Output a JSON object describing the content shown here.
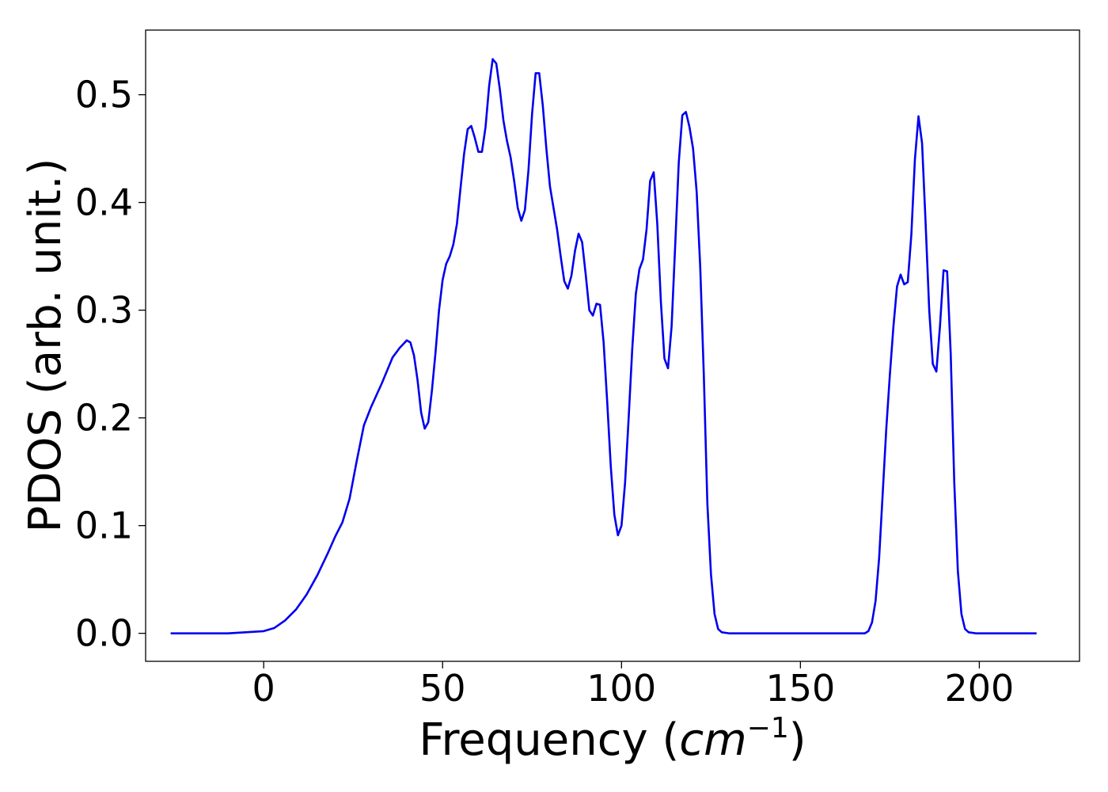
{
  "chart_data": {
    "type": "line",
    "title": "",
    "xlabel": "Frequency (",
    "xlabel_math_base": "cm",
    "xlabel_math_sup": "−1",
    "xlabel_suffix": ")",
    "ylabel": "PDOS (arb. unit.)",
    "xlim": [
      -33,
      228
    ],
    "ylim": [
      -0.026,
      0.56
    ],
    "xticks": [
      0,
      50,
      100,
      150,
      200
    ],
    "xtick_labels": [
      "0",
      "50",
      "100",
      "150",
      "200"
    ],
    "yticks": [
      0.0,
      0.1,
      0.2,
      0.3,
      0.4,
      0.5
    ],
    "ytick_labels": [
      "0.0",
      "0.1",
      "0.2",
      "0.3",
      "0.4",
      "0.5"
    ],
    "grid": false,
    "legend": "none",
    "series": [
      {
        "color": "#0000ee",
        "points": [
          [
            -26,
            0.0
          ],
          [
            -10,
            0.0
          ],
          [
            -5,
            0.001
          ],
          [
            0,
            0.002
          ],
          [
            3,
            0.005
          ],
          [
            6,
            0.012
          ],
          [
            9,
            0.022
          ],
          [
            12,
            0.036
          ],
          [
            15,
            0.054
          ],
          [
            18,
            0.075
          ],
          [
            20,
            0.09
          ],
          [
            22,
            0.103
          ],
          [
            24,
            0.125
          ],
          [
            26,
            0.16
          ],
          [
            28,
            0.193
          ],
          [
            30,
            0.21
          ],
          [
            33,
            0.232
          ],
          [
            36,
            0.256
          ],
          [
            38,
            0.265
          ],
          [
            40,
            0.272
          ],
          [
            41,
            0.27
          ],
          [
            42,
            0.258
          ],
          [
            43,
            0.235
          ],
          [
            44,
            0.205
          ],
          [
            45,
            0.19
          ],
          [
            46,
            0.196
          ],
          [
            47,
            0.225
          ],
          [
            48,
            0.26
          ],
          [
            49,
            0.3
          ],
          [
            50,
            0.328
          ],
          [
            51,
            0.343
          ],
          [
            52,
            0.35
          ],
          [
            53,
            0.361
          ],
          [
            54,
            0.38
          ],
          [
            55,
            0.413
          ],
          [
            56,
            0.445
          ],
          [
            57,
            0.468
          ],
          [
            58,
            0.471
          ],
          [
            59,
            0.46
          ],
          [
            60,
            0.447
          ],
          [
            61,
            0.447
          ],
          [
            62,
            0.47
          ],
          [
            63,
            0.508
          ],
          [
            64,
            0.533
          ],
          [
            65,
            0.529
          ],
          [
            66,
            0.505
          ],
          [
            67,
            0.476
          ],
          [
            68,
            0.457
          ],
          [
            69,
            0.442
          ],
          [
            70,
            0.42
          ],
          [
            71,
            0.395
          ],
          [
            72,
            0.383
          ],
          [
            73,
            0.393
          ],
          [
            74,
            0.43
          ],
          [
            75,
            0.482
          ],
          [
            76,
            0.52
          ],
          [
            77,
            0.52
          ],
          [
            78,
            0.49
          ],
          [
            79,
            0.45
          ],
          [
            80,
            0.415
          ],
          [
            81,
            0.395
          ],
          [
            82,
            0.375
          ],
          [
            83,
            0.35
          ],
          [
            84,
            0.327
          ],
          [
            85,
            0.32
          ],
          [
            86,
            0.332
          ],
          [
            87,
            0.355
          ],
          [
            88,
            0.371
          ],
          [
            89,
            0.363
          ],
          [
            90,
            0.333
          ],
          [
            91,
            0.3
          ],
          [
            92,
            0.295
          ],
          [
            93,
            0.306
          ],
          [
            94,
            0.305
          ],
          [
            95,
            0.27
          ],
          [
            96,
            0.215
          ],
          [
            97,
            0.155
          ],
          [
            98,
            0.11
          ],
          [
            99,
            0.091
          ],
          [
            100,
            0.1
          ],
          [
            101,
            0.14
          ],
          [
            102,
            0.2
          ],
          [
            103,
            0.264
          ],
          [
            104,
            0.315
          ],
          [
            105,
            0.338
          ],
          [
            106,
            0.347
          ],
          [
            107,
            0.375
          ],
          [
            108,
            0.42
          ],
          [
            109,
            0.428
          ],
          [
            110,
            0.38
          ],
          [
            111,
            0.308
          ],
          [
            112,
            0.255
          ],
          [
            113,
            0.246
          ],
          [
            114,
            0.285
          ],
          [
            115,
            0.36
          ],
          [
            116,
            0.437
          ],
          [
            117,
            0.481
          ],
          [
            118,
            0.484
          ],
          [
            119,
            0.47
          ],
          [
            120,
            0.45
          ],
          [
            121,
            0.41
          ],
          [
            122,
            0.34
          ],
          [
            123,
            0.24
          ],
          [
            124,
            0.12
          ],
          [
            125,
            0.055
          ],
          [
            126,
            0.018
          ],
          [
            127,
            0.004
          ],
          [
            128,
            0.001
          ],
          [
            130,
            0.0
          ],
          [
            140,
            0.0
          ],
          [
            150,
            0.0
          ],
          [
            160,
            0.0
          ],
          [
            168,
            0.0
          ],
          [
            169,
            0.002
          ],
          [
            170,
            0.01
          ],
          [
            171,
            0.03
          ],
          [
            172,
            0.07
          ],
          [
            173,
            0.13
          ],
          [
            174,
            0.19
          ],
          [
            175,
            0.24
          ],
          [
            176,
            0.285
          ],
          [
            177,
            0.322
          ],
          [
            178,
            0.333
          ],
          [
            179,
            0.324
          ],
          [
            180,
            0.326
          ],
          [
            181,
            0.37
          ],
          [
            182,
            0.44
          ],
          [
            183,
            0.48
          ],
          [
            184,
            0.455
          ],
          [
            185,
            0.38
          ],
          [
            186,
            0.3
          ],
          [
            187,
            0.25
          ],
          [
            188,
            0.243
          ],
          [
            189,
            0.285
          ],
          [
            190,
            0.337
          ],
          [
            191,
            0.336
          ],
          [
            192,
            0.26
          ],
          [
            193,
            0.14
          ],
          [
            194,
            0.058
          ],
          [
            195,
            0.018
          ],
          [
            196,
            0.004
          ],
          [
            197,
            0.001
          ],
          [
            199,
            0.0
          ],
          [
            210,
            0.0
          ],
          [
            216,
            0.0
          ]
        ]
      }
    ]
  }
}
